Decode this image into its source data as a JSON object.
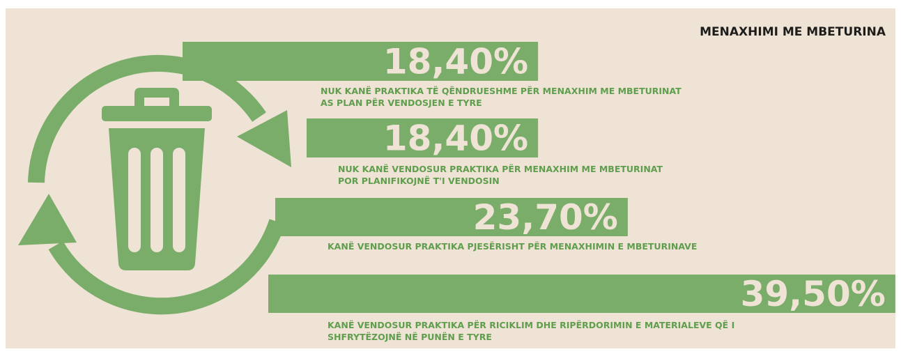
{
  "chart_data": {
    "type": "bar",
    "orientation": "horizontal",
    "title": "MENAXHIMI ME MBETURINA",
    "categories": [
      "NUK KANË PRAKTIKA TË QËNDRUESHME PËR MENAXHIM ME MBETURINAT\nAS PLAN PËR VENDOSJEN E TYRE",
      "NUK KANË VENDOSUR PRAKTIKA PËR MENAXHIM ME MBETURINAT\nPOR PLANIFIKOJNË T'I VENDOSIN",
      "KANË VENDOSUR PRAKTIKA PJESËRISHT PËR MENAXHIMIN E MBETURINAVE",
      "KANË VENDOSUR PRAKTIKA PËR RICIKLIM DHE RIPËRDORIMIN E MATERIALEVE QË I\nSHFRYTËZOJNË NË PUNËN E TYRE"
    ],
    "values": [
      18.4,
      18.4,
      23.7,
      39.5
    ],
    "value_labels": [
      "18,40%",
      "18,40%",
      "23,70%",
      "39,50%"
    ],
    "color": "#79ad69"
  }
}
